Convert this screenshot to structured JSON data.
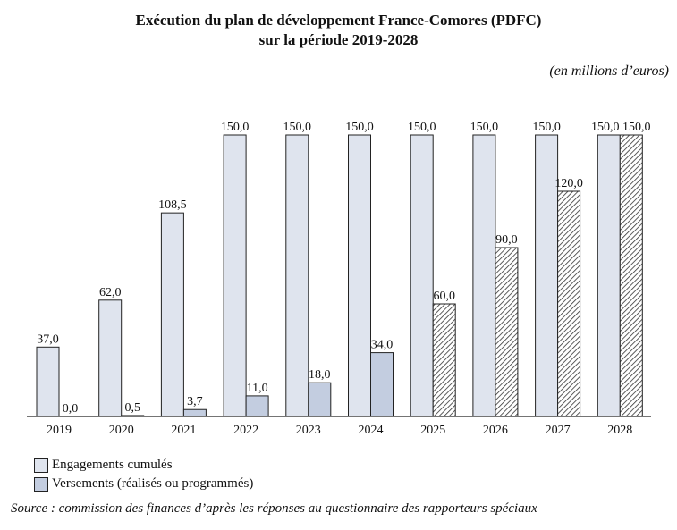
{
  "chart_data": {
    "type": "bar",
    "title": "Exécution du plan de développement France-Comores (PDFC) sur la période 2019-2028",
    "title_lines": [
      "Exécution du plan de développement France-Comores (PDFC)",
      "sur la période 2019-2028"
    ],
    "unit": "(en millions d’euros)",
    "xlabel": "",
    "ylabel": "",
    "ylim": [
      0,
      150
    ],
    "grid": false,
    "categories": [
      "2019",
      "2020",
      "2021",
      "2022",
      "2023",
      "2024",
      "2025",
      "2026",
      "2027",
      "2028"
    ],
    "series": [
      {
        "name": "Engagements cumulés",
        "values": [
          37.0,
          62.0,
          108.5,
          150.0,
          150.0,
          150.0,
          150.0,
          150.0,
          150.0,
          150.0
        ],
        "labels": [
          "37,0",
          "62,0",
          "108,5",
          "150,0",
          "150,0",
          "150,0",
          "150,0",
          "150,0",
          "150,0",
          "150,0"
        ],
        "color": "#dfe4ee"
      },
      {
        "name": "Versements (réalisés ou programmés)",
        "values": [
          0.0,
          0.5,
          3.7,
          11.0,
          18.0,
          34.0,
          60.0,
          90.0,
          120.0,
          150.0
        ],
        "labels": [
          "0,0",
          "0,5",
          "3,7",
          "11,0",
          "18,0",
          "34,0",
          "60,0",
          "90,0",
          "120,0",
          "150,0"
        ],
        "color": "#c3cde0",
        "hatched_from_index": 6
      }
    ],
    "legend_position": "bottom-left",
    "source": "Source : commission des finances d’après les réponses au questionnaire des rapporteurs spéciaux"
  }
}
